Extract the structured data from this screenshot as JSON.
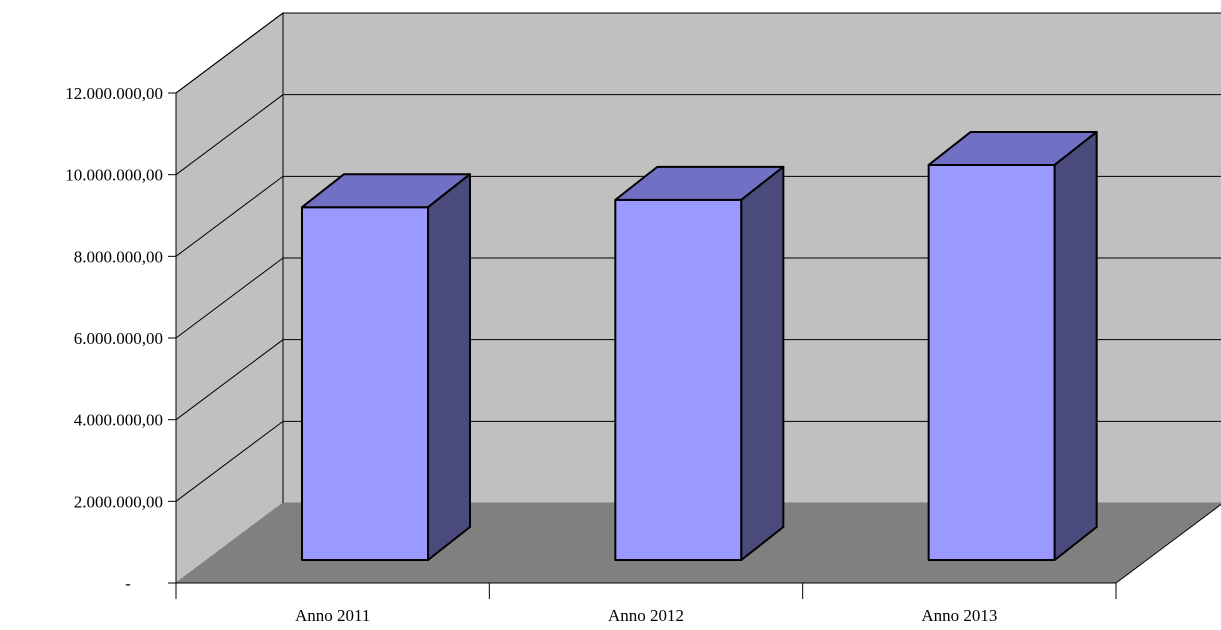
{
  "chart_data": {
    "type": "bar",
    "categories": [
      "Anno 2011",
      "Anno 2012",
      "Anno 2013"
    ],
    "values": [
      9600000,
      9800000,
      10750000
    ],
    "ylim": [
      0,
      12000000
    ],
    "y_ticks": [
      {
        "value": 0,
        "label": "-"
      },
      {
        "value": 2000000,
        "label": "2.000.000,00"
      },
      {
        "value": 4000000,
        "label": "4.000.000,00"
      },
      {
        "value": 6000000,
        "label": "6.000.000,00"
      },
      {
        "value": 8000000,
        "label": "8.000.000,00"
      },
      {
        "value": 10000000,
        "label": "10.000.000,00"
      },
      {
        "value": 12000000,
        "label": "12.000.000,00"
      }
    ],
    "grid": true,
    "three_d": true,
    "colors": {
      "bar_front": "#9999ff",
      "bar_top": "#7070c4",
      "bar_side": "#4a4a7c",
      "back_wall": "#c0c0c0",
      "side_wall": "#c0c0c0",
      "floor": "#808080"
    }
  }
}
